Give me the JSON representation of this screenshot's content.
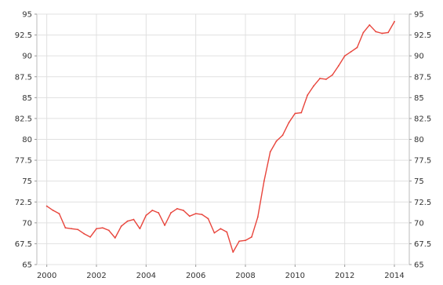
{
  "chart_data": {
    "type": "line",
    "title": "",
    "xlabel": "",
    "ylabel": "",
    "xlim": [
      1999.6,
      2014.6
    ],
    "ylim": [
      65,
      95
    ],
    "x_ticks": [
      "2000",
      "2002",
      "2004",
      "2006",
      "2008",
      "2010",
      "2012",
      "2014"
    ],
    "y_ticks": [
      "65",
      "67.5",
      "70",
      "72.5",
      "75",
      "77.5",
      "80",
      "82.5",
      "85",
      "87.5",
      "90",
      "92.5",
      "95"
    ],
    "grid": true,
    "right_axis_labels": true,
    "line_color": "#e8453c",
    "series": [
      {
        "x": [
          2000.0,
          2000.25,
          2000.5,
          2000.75,
          2001.0,
          2001.25,
          2001.5,
          2001.75,
          2002.0,
          2002.25,
          2002.5,
          2002.75,
          2003.0,
          2003.25,
          2003.5,
          2003.75,
          2004.0,
          2004.25,
          2004.5,
          2004.75,
          2005.0,
          2005.25,
          2005.5,
          2005.75,
          2006.0,
          2006.25,
          2006.5,
          2006.75,
          2007.0,
          2007.25,
          2007.5,
          2007.75,
          2008.0,
          2008.25,
          2008.5,
          2008.75,
          2009.0,
          2009.25,
          2009.5,
          2009.75,
          2010.0,
          2010.25,
          2010.5,
          2010.75,
          2011.0,
          2011.25,
          2011.5,
          2011.75,
          2012.0,
          2012.25,
          2012.5,
          2012.75,
          2013.0,
          2013.25,
          2013.5,
          2013.75,
          2014.0
        ],
        "y": [
          72.0,
          71.5,
          71.1,
          69.4,
          69.3,
          69.2,
          68.7,
          68.3,
          69.3,
          69.4,
          69.1,
          68.2,
          69.6,
          70.2,
          70.4,
          69.3,
          70.9,
          71.5,
          71.2,
          69.7,
          71.2,
          71.7,
          71.5,
          70.8,
          71.1,
          71.0,
          70.5,
          68.8,
          69.3,
          68.9,
          66.5,
          67.8,
          67.9,
          68.3,
          70.7,
          75.0,
          78.5,
          79.8,
          80.5,
          82.0,
          83.1,
          83.2,
          85.3,
          86.4,
          87.3,
          87.2,
          87.7,
          88.8,
          90.0,
          90.5,
          91.0,
          92.8,
          93.7,
          92.9,
          92.7,
          92.8,
          94.1
        ]
      }
    ]
  }
}
